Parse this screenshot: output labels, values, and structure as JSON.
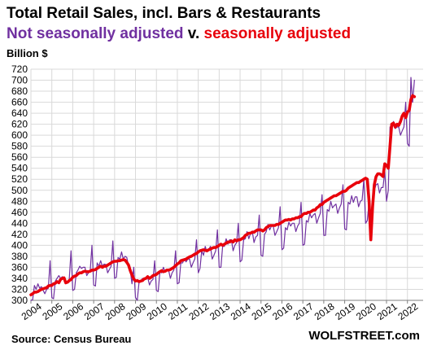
{
  "header": {
    "title": "Total Retail Sales, incl. Bars & Restaurants",
    "subtitle_nsa": "Not seasonally adjusted",
    "subtitle_mid": " v. ",
    "subtitle_sa": "seasonally adjusted",
    "ylabel": "Billion $"
  },
  "footer": {
    "source": "Source: Census Bureau",
    "brand": "WOLFSTREET.com"
  },
  "chart_data": {
    "type": "line",
    "title": "Total Retail Sales, incl. Bars & Restaurants",
    "subtitle": "Not seasonally adjusted v. seasonally adjusted",
    "ylabel": "Billion $",
    "xlabel": "",
    "ylim": [
      300,
      720
    ],
    "yticks": [
      300,
      320,
      340,
      360,
      380,
      400,
      420,
      440,
      460,
      480,
      500,
      520,
      540,
      560,
      580,
      600,
      620,
      640,
      660,
      680,
      700,
      720
    ],
    "xticks": [
      "2004",
      "2005",
      "2006",
      "2007",
      "2008",
      "2009",
      "2010",
      "2011",
      "2012",
      "2013",
      "2014",
      "2015",
      "2016",
      "2017",
      "2018",
      "2019",
      "2020",
      "2021",
      "2022"
    ],
    "x_start": "2004-01",
    "frequency": "monthly",
    "grid": true,
    "colors": {
      "nsa": "#7030a0",
      "sa": "#e8000b"
    },
    "series": [
      {
        "name": "Not seasonally adjusted",
        "values": [
          300,
          301,
          327,
          320,
          330,
          322,
          325,
          318,
          312,
          320,
          322,
          372,
          305,
          303,
          335,
          340,
          345,
          340,
          343,
          340,
          330,
          333,
          338,
          390,
          318,
          320,
          350,
          355,
          362,
          358,
          360,
          360,
          345,
          350,
          352,
          400,
          328,
          326,
          368,
          362,
          372,
          362,
          366,
          365,
          350,
          356,
          362,
          408,
          340,
          342,
          378,
          375,
          388,
          375,
          380,
          378,
          362,
          355,
          330,
          360,
          305,
          300,
          332,
          335,
          340,
          338,
          340,
          342,
          328,
          335,
          338,
          372,
          318,
          316,
          352,
          350,
          360,
          352,
          355,
          355,
          340,
          350,
          355,
          390,
          330,
          332,
          368,
          368,
          375,
          370,
          375,
          375,
          360,
          368,
          375,
          410,
          350,
          358,
          390,
          382,
          398,
          388,
          392,
          398,
          375,
          382,
          390,
          428,
          360,
          360,
          398,
          398,
          412,
          402,
          410,
          410,
          390,
          400,
          405,
          440,
          370,
          373,
          410,
          412,
          425,
          412,
          422,
          425,
          405,
          415,
          418,
          455,
          382,
          380,
          420,
          425,
          438,
          428,
          435,
          435,
          418,
          425,
          432,
          470,
          392,
          395,
          432,
          428,
          442,
          435,
          440,
          440,
          425,
          435,
          440,
          478,
          400,
          402,
          445,
          442,
          458,
          450,
          455,
          458,
          440,
          450,
          458,
          492,
          418,
          418,
          465,
          462,
          480,
          468,
          472,
          475,
          458,
          468,
          475,
          510,
          430,
          428,
          478,
          475,
          490,
          478,
          488,
          488,
          470,
          480,
          482,
          520,
          440,
          445,
          480,
          412,
          450,
          500,
          510,
          512,
          495,
          505,
          505,
          535,
          480,
          500,
          615,
          615,
          625,
          612,
          615,
          615,
          600,
          608,
          615,
          660,
          585,
          580,
          705,
          660,
          700
        ]
      },
      {
        "name": "Seasonally adjusted",
        "values": [
          310,
          312,
          315,
          315,
          316,
          318,
          320,
          321,
          322,
          323,
          326,
          327,
          327,
          330,
          331,
          334,
          332,
          338,
          340,
          341,
          332,
          333,
          336,
          338,
          342,
          344,
          345,
          348,
          350,
          350,
          352,
          353,
          352,
          352,
          353,
          355,
          355,
          356,
          358,
          360,
          362,
          360,
          362,
          362,
          364,
          366,
          368,
          370,
          371,
          371,
          372,
          372,
          373,
          374,
          373,
          369,
          364,
          354,
          346,
          339,
          335,
          336,
          334,
          335,
          336,
          339,
          340,
          343,
          340,
          342,
          345,
          346,
          347,
          350,
          352,
          354,
          352,
          353,
          355,
          355,
          356,
          358,
          360,
          363,
          366,
          368,
          372,
          373,
          374,
          375,
          377,
          379,
          380,
          382,
          384,
          385,
          388,
          390,
          391,
          392,
          391,
          390,
          392,
          393,
          395,
          396,
          396,
          398,
          400,
          402,
          400,
          402,
          404,
          406,
          406,
          408,
          406,
          410,
          408,
          410,
          410,
          412,
          414,
          418,
          420,
          422,
          422,
          424,
          424,
          426,
          428,
          428,
          428,
          426,
          428,
          432,
          434,
          436,
          436,
          436,
          436,
          438,
          438,
          440,
          442,
          444,
          446,
          446,
          447,
          446,
          448,
          448,
          450,
          450,
          452,
          452,
          456,
          458,
          458,
          460,
          460,
          462,
          464,
          464,
          468,
          470,
          474,
          474,
          478,
          480,
          482,
          484,
          486,
          488,
          490,
          490,
          492,
          494,
          496,
          498,
          498,
          500,
          504,
          506,
          508,
          510,
          512,
          514,
          514,
          516,
          518,
          520,
          522,
          520,
          480,
          410,
          470,
          510,
          525,
          530,
          530,
          528,
          525,
          548,
          545,
          540,
          580,
          620,
          622,
          615,
          620,
          618,
          625,
          635,
          640,
          632,
          642,
          645,
          665,
          672,
          670
        ]
      }
    ]
  }
}
